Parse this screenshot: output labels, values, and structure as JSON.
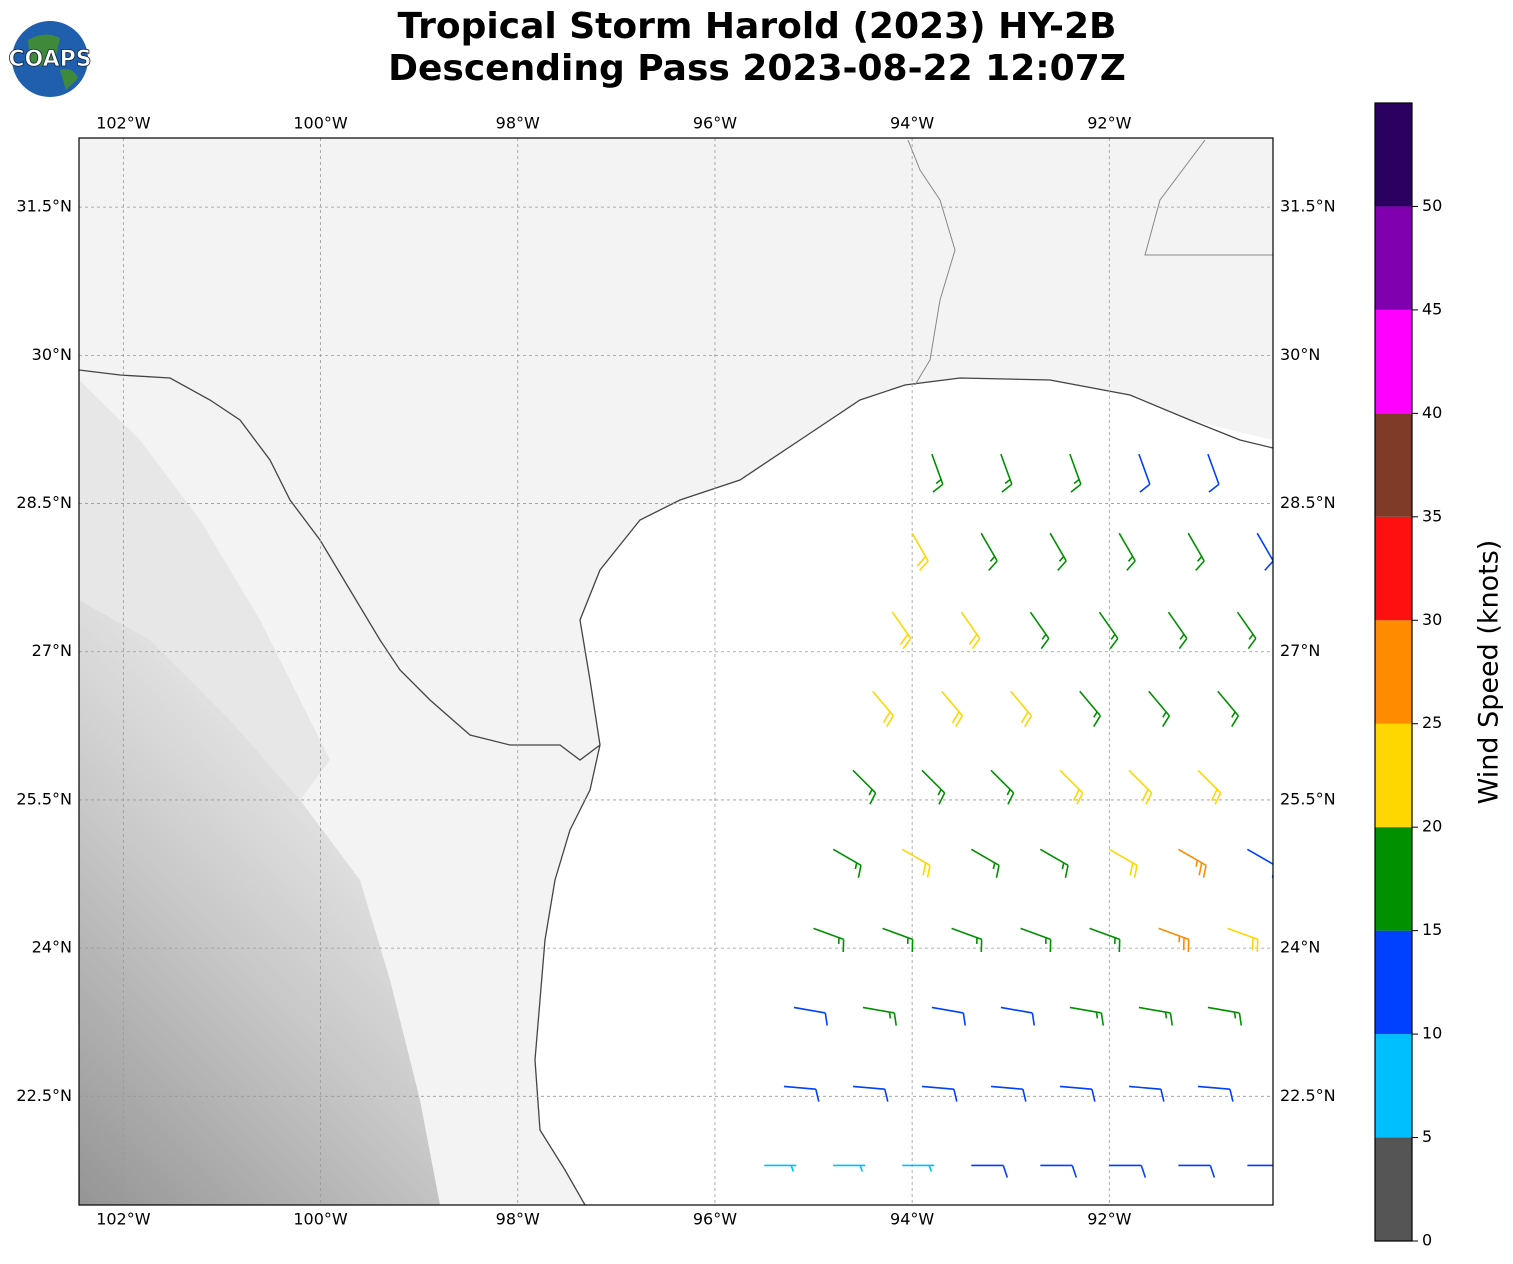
{
  "title": "Tropical Storm Harold (2023) HY-2B",
  "subtitle": "Descending Pass 2023-08-22 12:07Z",
  "logo": "COAPS",
  "map": {
    "lonlim": [
      -102.45,
      -90.34
    ],
    "latlim": [
      21.4,
      32.2
    ],
    "lonticks": [
      {
        "value": -102,
        "label": "102°W"
      },
      {
        "value": -100,
        "label": "100°W"
      },
      {
        "value": -98,
        "label": "98°W"
      },
      {
        "value": -96,
        "label": "96°W"
      },
      {
        "value": -94,
        "label": "94°W"
      },
      {
        "value": -92,
        "label": "92°W"
      }
    ],
    "latticks": [
      {
        "value": 31.5,
        "label": "31.5°N"
      },
      {
        "value": 30,
        "label": "30°N"
      },
      {
        "value": 28.5,
        "label": "28.5°N"
      },
      {
        "value": 27,
        "label": "27°N"
      },
      {
        "value": 25.5,
        "label": "25.5°N"
      },
      {
        "value": 24,
        "label": "24°N"
      },
      {
        "value": 22.5,
        "label": "22.5°N"
      }
    ],
    "grid": true
  },
  "colorbar": {
    "label": "Wind Speed (knots)",
    "lim": [
      0,
      55
    ],
    "ticks": [
      0,
      5,
      10,
      15,
      20,
      25,
      30,
      35,
      40,
      45,
      50
    ],
    "colors": [
      "#555555",
      "#00bfff",
      "#0040ff",
      "#009000",
      "#ffd700",
      "#ff8c00",
      "#ff1010",
      "#7f3a28",
      "#ff00ff",
      "#8000b0",
      "#2a0060"
    ]
  },
  "winds": {
    "lat": [
      29.0,
      29.0,
      29.0,
      29.0,
      29.0,
      28.2,
      28.2,
      28.2,
      28.2,
      28.2,
      28.2,
      27.4,
      27.4,
      27.4,
      27.4,
      27.4,
      27.4,
      26.6,
      26.6,
      26.6,
      26.6,
      26.6,
      26.6,
      25.8,
      25.8,
      25.8,
      25.8,
      25.8,
      25.8,
      25.0,
      25.0,
      25.0,
      25.0,
      25.0,
      25.0,
      25.0,
      24.2,
      24.2,
      24.2,
      24.2,
      24.2,
      24.2,
      24.2,
      23.4,
      23.4,
      23.4,
      23.4,
      23.4,
      23.4,
      23.4,
      22.6,
      22.6,
      22.6,
      22.6,
      22.6,
      22.6,
      22.6,
      21.8,
      21.8,
      21.8,
      21.8,
      21.8,
      21.8,
      21.8,
      21.8
    ],
    "lon": [
      -93.8,
      -93.1,
      -92.4,
      -91.7,
      -91.0,
      -94.0,
      -93.3,
      -92.6,
      -91.9,
      -91.2,
      -90.5,
      -94.2,
      -93.5,
      -92.8,
      -92.1,
      -91.4,
      -90.7,
      -94.4,
      -93.7,
      -93.0,
      -92.3,
      -91.6,
      -90.9,
      -94.6,
      -93.9,
      -93.2,
      -92.5,
      -91.8,
      -91.1,
      -94.8,
      -94.1,
      -93.4,
      -92.7,
      -92.0,
      -91.3,
      -90.6,
      -95.0,
      -94.3,
      -93.6,
      -92.9,
      -92.2,
      -91.5,
      -90.8,
      -95.2,
      -94.5,
      -93.8,
      -93.1,
      -92.4,
      -91.7,
      -91.0,
      -95.3,
      -94.6,
      -93.9,
      -93.2,
      -92.5,
      -91.8,
      -91.1,
      -95.5,
      -94.8,
      -94.1,
      -93.4,
      -92.7,
      -92.0,
      -91.3,
      -90.6
    ],
    "speed": [
      18,
      17,
      16,
      14,
      12,
      22,
      18,
      17,
      16,
      16,
      13,
      23,
      22,
      18,
      17,
      17,
      16,
      22,
      22,
      21,
      19,
      18,
      17,
      17,
      18,
      17,
      22,
      23,
      21,
      17,
      21,
      17,
      18,
      22,
      27,
      14,
      16,
      17,
      18,
      16,
      19,
      26,
      22,
      12,
      16,
      13,
      13,
      17,
      18,
      17,
      10,
      12,
      11,
      13,
      12,
      14,
      12,
      8,
      8,
      9,
      12,
      13,
      12,
      12,
      12
    ],
    "direction": [
      160,
      160,
      160,
      160,
      160,
      150,
      150,
      150,
      150,
      150,
      150,
      145,
      145,
      145,
      145,
      145,
      145,
      140,
      140,
      140,
      140,
      140,
      140,
      135,
      135,
      135,
      135,
      135,
      135,
      120,
      120,
      120,
      120,
      120,
      120,
      120,
      110,
      110,
      110,
      110,
      110,
      110,
      110,
      100,
      100,
      100,
      100,
      100,
      100,
      100,
      95,
      95,
      95,
      95,
      95,
      95,
      95,
      90,
      90,
      90,
      90,
      90,
      90,
      90,
      90
    ]
  }
}
